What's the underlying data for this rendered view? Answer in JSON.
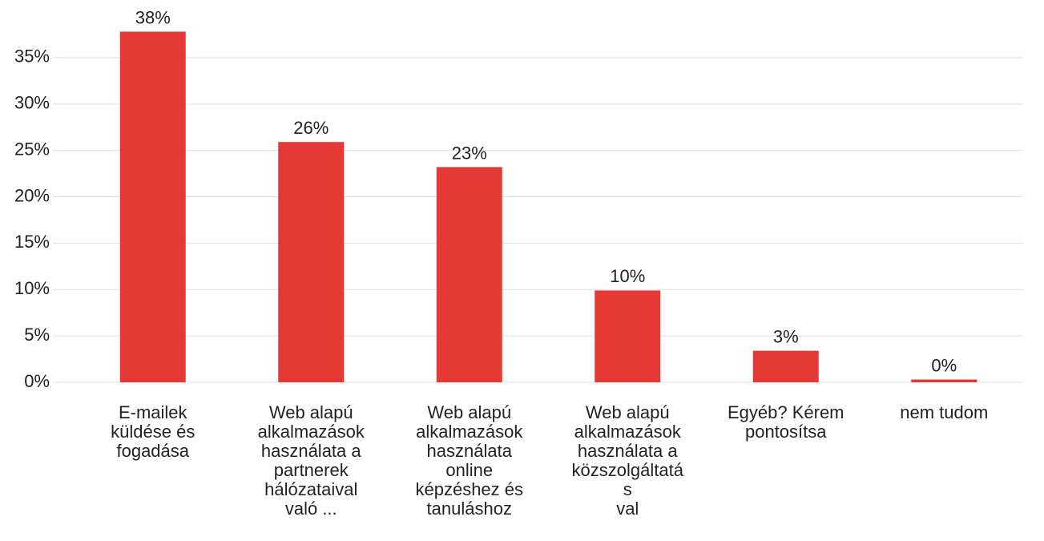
{
  "chart_data": {
    "type": "bar",
    "categories": [
      "E-mailek\nküldése és\nfogadása",
      "Web alapú\nalkalmazások\nhasználata a\npartnerek\nhálózataival\nvaló ...",
      "Web alapú\nalkalmazások\nhasználata\nonline\nképzéshez és\ntanuláshoz",
      "Web alapú\nalkalmazások\nhasználata a\nközszolgáltatá\ns\nval",
      "Egyéb? Kérem\npontosítsa",
      "nem tudom"
    ],
    "values": [
      37.8,
      25.9,
      23.2,
      9.9,
      3.4,
      0.3
    ],
    "value_labels": [
      "38%",
      "26%",
      "23%",
      "10%",
      "3%",
      "0%"
    ],
    "color": "#e53935",
    "ylim": [
      0,
      40
    ],
    "yticks": [
      {
        "value": 0,
        "label": "0%"
      },
      {
        "value": 5,
        "label": "5%"
      },
      {
        "value": 10,
        "label": "10%"
      },
      {
        "value": 15,
        "label": "15%"
      },
      {
        "value": 20,
        "label": "20%"
      },
      {
        "value": 25,
        "label": "25%"
      },
      {
        "value": 30,
        "label": "30%"
      },
      {
        "value": 35,
        "label": "35%"
      }
    ],
    "grid": true
  }
}
